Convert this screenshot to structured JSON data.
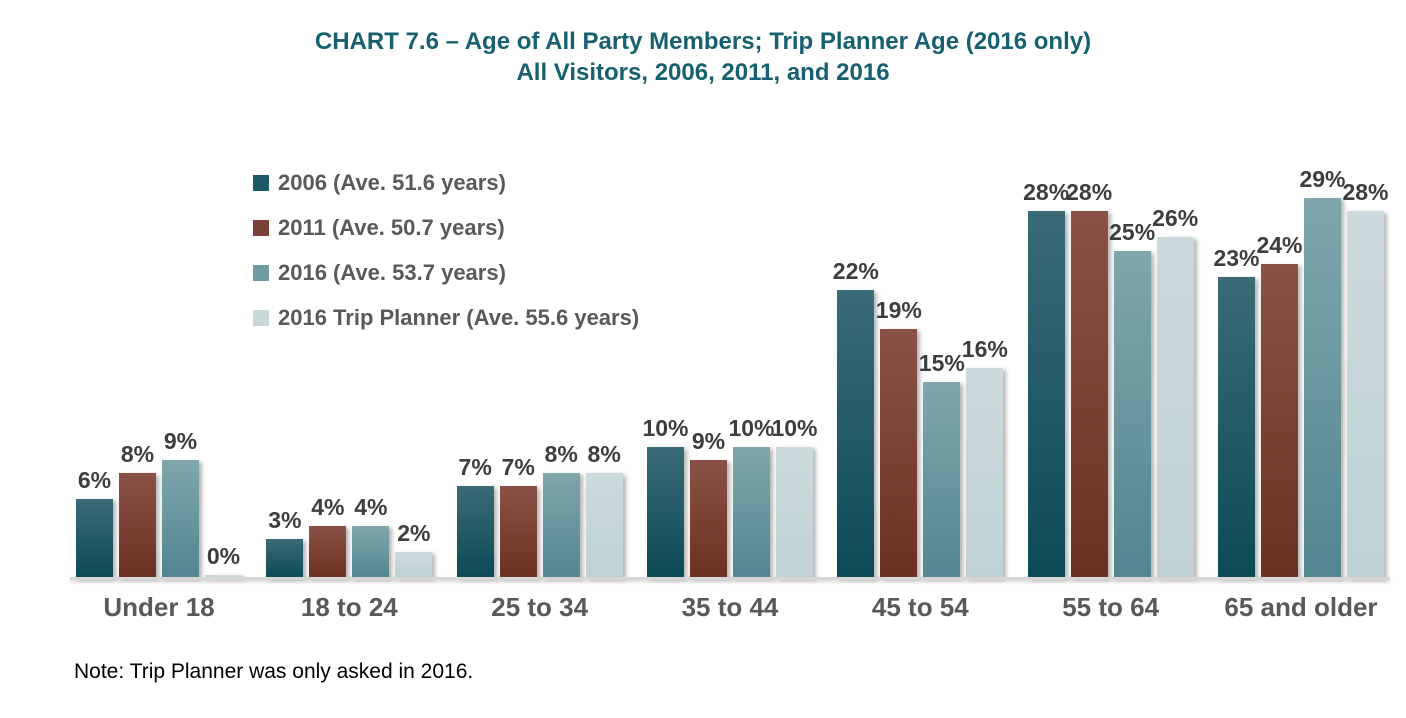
{
  "title": {
    "line1": "CHART 7.6 – Age of All Party Members; Trip Planner Age (2016 only)",
    "line2": "All Visitors, 2006, 2011, and 2016"
  },
  "note": "Note: Trip Planner was only asked in 2016.",
  "colors": {
    "title_text": "#17606f",
    "legend_text": "#595959",
    "value_label_text": "#3d3d3d",
    "category_text": "#595959",
    "axis_line": "#d6d6d6"
  },
  "chart_data": {
    "type": "bar",
    "title": "CHART 7.6 – Age of All Party Members; Trip Planner Age (2016 only) All Visitors, 2006, 2011, and 2016",
    "categories": [
      "Under 18",
      "18 to 24",
      "25 to 34",
      "35 to 44",
      "45 to 54",
      "55 to 64",
      "65 and older"
    ],
    "series": [
      {
        "name": "2006 (Ave. 51.6 years)",
        "values": [
          6,
          3,
          7,
          10,
          22,
          28,
          23
        ],
        "color_top": "#3a6b77",
        "color_bottom": "#0b4a55",
        "legend_color": "#1d5a67"
      },
      {
        "name": "2011 (Ave. 50.7 years)",
        "values": [
          8,
          4,
          7,
          9,
          19,
          28,
          24
        ],
        "color_top": "#8a5246",
        "color_bottom": "#6b3022",
        "legend_color": "#7a4136"
      },
      {
        "name": "2016 (Ave. 53.7 years)",
        "values": [
          9,
          4,
          8,
          10,
          15,
          25,
          29
        ],
        "color_top": "#7fa7ac",
        "color_bottom": "#538590",
        "legend_color": "#6f9ca2"
      },
      {
        "name": "2016 Trip Planner (Ave. 55.6 years)",
        "values": [
          0,
          2,
          8,
          10,
          16,
          26,
          28
        ],
        "color_top": "#ccdadd",
        "color_bottom": "#bfd2d6",
        "legend_color": "#c8d8da"
      }
    ],
    "value_suffix": "%",
    "ylim": [
      0,
      30
    ],
    "grid": false,
    "legend_position": "top-left",
    "xlabel": "",
    "ylabel": ""
  }
}
